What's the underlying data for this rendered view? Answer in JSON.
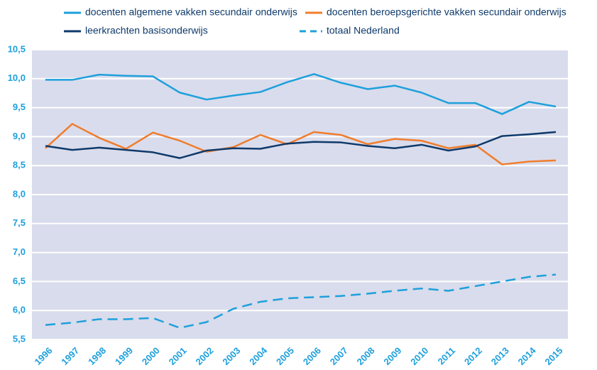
{
  "chart_data": {
    "type": "line",
    "categories": [
      "1996",
      "1997",
      "1998",
      "1999",
      "2000",
      "2001",
      "2002",
      "2003",
      "2004",
      "2005",
      "2006",
      "2007",
      "2008",
      "2009",
      "2010",
      "2011",
      "2012",
      "2013",
      "2014",
      "2015"
    ],
    "series": [
      {
        "name": "docenten algemene vakken secundair onderwijs",
        "color": "#1ea0dc",
        "style": "solid",
        "values": [
          9.98,
          9.98,
          10.07,
          10.05,
          10.04,
          9.76,
          9.64,
          9.71,
          9.77,
          9.94,
          10.08,
          9.93,
          9.82,
          9.88,
          9.76,
          9.58,
          9.58,
          9.39,
          9.6,
          9.52
        ]
      },
      {
        "name": "docenten beroepsgerichte vakken secundair onderwijs",
        "color": "#f07d2d",
        "style": "solid",
        "values": [
          8.8,
          9.22,
          8.98,
          8.79,
          9.07,
          8.93,
          8.74,
          8.82,
          9.03,
          8.87,
          9.08,
          9.03,
          8.87,
          8.96,
          8.93,
          8.8,
          8.86,
          8.52,
          8.57,
          8.59
        ]
      },
      {
        "name": "leerkrachten basisonderwijs",
        "color": "#0e3a6b",
        "style": "solid",
        "values": [
          8.84,
          8.77,
          8.81,
          8.77,
          8.73,
          8.63,
          8.76,
          8.8,
          8.79,
          8.88,
          8.91,
          8.9,
          8.84,
          8.8,
          8.86,
          8.76,
          8.83,
          9.01,
          9.04,
          9.08
        ]
      },
      {
        "name": "totaal Nederland",
        "color": "#1ea0dc",
        "style": "dashed",
        "values": [
          5.75,
          5.79,
          5.85,
          5.85,
          5.87,
          5.7,
          5.8,
          6.03,
          6.15,
          6.21,
          6.23,
          6.25,
          6.29,
          6.34,
          6.38,
          6.34,
          6.42,
          6.5,
          6.58,
          6.62
        ]
      }
    ],
    "ylim": [
      5.5,
      10.5
    ],
    "yticks": [
      {
        "value": 5.5,
        "label": "5,5"
      },
      {
        "value": 6,
        "label": "6,0"
      },
      {
        "value": 6.5,
        "label": "6,5"
      },
      {
        "value": 7,
        "label": "7,0"
      },
      {
        "value": 7.5,
        "label": "7,5"
      },
      {
        "value": 8,
        "label": "8,0"
      },
      {
        "value": 8.5,
        "label": "8,5"
      },
      {
        "value": 9,
        "label": "9,0"
      },
      {
        "value": 9.5,
        "label": "9,5"
      },
      {
        "value": 10,
        "label": "10,0"
      },
      {
        "value": 10.5,
        "label": "10,5"
      }
    ],
    "grid": true
  }
}
